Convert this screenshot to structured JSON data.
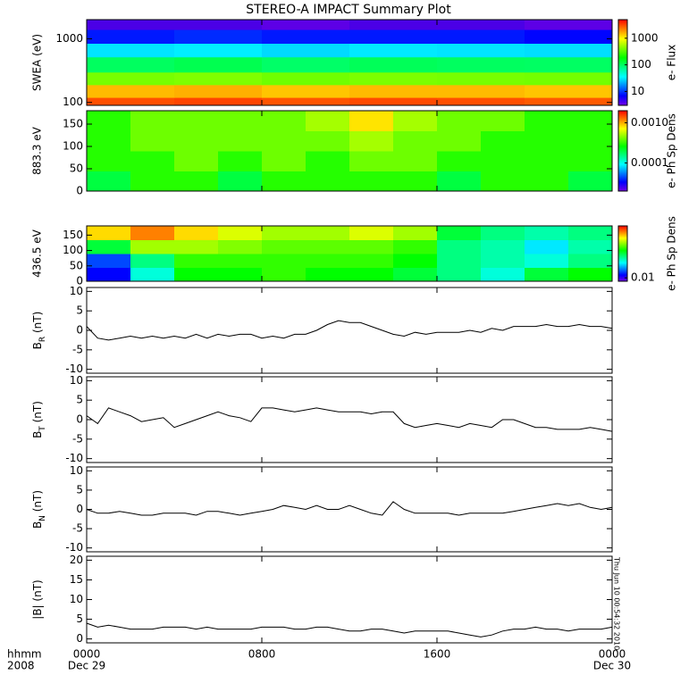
{
  "title": "STEREO-A IMPACT Summary Plot",
  "timestamp": "Thu Jun 10 00:54:32 2010",
  "x_axis": {
    "xlim": [
      0,
      24
    ],
    "xticks": [
      {
        "value": 0,
        "label": "0000"
      },
      {
        "value": 8,
        "label": "0800"
      },
      {
        "value": 16,
        "label": "1600"
      },
      {
        "value": 24,
        "label": "0000"
      }
    ],
    "date_labels": [
      "Dec 29",
      "Dec 30"
    ],
    "left_labels": [
      "hhmm",
      "2008"
    ]
  },
  "chart_data": [
    {
      "type": "spectrogram",
      "ylabel": "SWEA (eV)",
      "ylog": true,
      "ylim": [
        90,
        2000
      ],
      "yticks": [
        100,
        1000
      ],
      "x_edges": [
        0,
        4,
        8,
        12,
        16,
        20,
        24
      ],
      "y_edges": [
        90,
        120,
        190,
        300,
        520,
        850,
        1400,
        2000
      ],
      "values": [
        [
          3000,
          3200,
          2900,
          3100,
          3000,
          2800
        ],
        [
          1500,
          1600,
          1400,
          1500,
          1500,
          1400
        ],
        [
          400,
          420,
          380,
          410,
          400,
          390
        ],
        [
          100,
          110,
          95,
          105,
          100,
          98
        ],
        [
          30,
          32,
          28,
          31,
          30,
          29
        ],
        [
          8,
          9,
          8,
          8,
          8,
          7
        ],
        [
          4,
          4,
          3.5,
          4,
          4,
          3.5
        ]
      ],
      "clim": [
        3,
        5000
      ],
      "clog": true,
      "cticks": [
        10,
        100,
        1000
      ],
      "clabel": "e- Flux"
    },
    {
      "type": "spectrogram",
      "ylabel": "883.3 eV",
      "ylog": false,
      "ylim": [
        0,
        180
      ],
      "yticks": [
        0,
        50,
        100,
        150
      ],
      "x_edges": [
        0,
        2,
        4,
        6,
        8,
        10,
        12,
        14,
        16,
        18,
        20,
        22,
        24
      ],
      "y_edges": [
        0,
        45,
        90,
        135,
        180
      ],
      "values": [
        [
          0.0002,
          0.0003,
          0.0003,
          0.0002,
          0.0003,
          0.0003,
          0.0003,
          0.0003,
          0.0002,
          0.0003,
          0.0003,
          0.0002
        ],
        [
          0.0003,
          0.0003,
          0.0004,
          0.0003,
          0.0004,
          0.0003,
          0.0004,
          0.0004,
          0.0003,
          0.0003,
          0.0003,
          0.0003
        ],
        [
          0.0003,
          0.0004,
          0.0004,
          0.0004,
          0.0004,
          0.0004,
          0.0005,
          0.0004,
          0.0004,
          0.0003,
          0.0003,
          0.0003
        ],
        [
          0.0003,
          0.0004,
          0.0004,
          0.0004,
          0.0004,
          0.0005,
          0.0008,
          0.0005,
          0.0004,
          0.0004,
          0.0003,
          0.0003
        ]
      ],
      "clim": [
        2e-05,
        0.002
      ],
      "clog": true,
      "cticks": [
        0.0001,
        {
          "value": 0.001,
          "label": "0.0010"
        }
      ],
      "clabel": "e- Ph Sp Dens"
    },
    {
      "type": "spectrogram",
      "ylabel": "436.5 eV",
      "ylog": false,
      "ylim": [
        0,
        180
      ],
      "yticks": [
        0,
        50,
        100,
        150
      ],
      "x_edges": [
        0,
        2,
        4,
        6,
        8,
        10,
        12,
        14,
        16,
        18,
        20,
        22,
        24
      ],
      "y_edges": [
        0,
        45,
        90,
        135,
        180
      ],
      "values": [
        [
          0.012,
          0.03,
          0.06,
          0.06,
          0.07,
          0.06,
          0.06,
          0.05,
          0.04,
          0.03,
          0.05,
          0.06
        ],
        [
          0.015,
          0.04,
          0.07,
          0.07,
          0.07,
          0.07,
          0.07,
          0.06,
          0.04,
          0.035,
          0.03,
          0.04
        ],
        [
          0.05,
          0.1,
          0.1,
          0.09,
          0.08,
          0.08,
          0.08,
          0.07,
          0.04,
          0.035,
          0.025,
          0.035
        ],
        [
          0.15,
          0.2,
          0.15,
          0.12,
          0.1,
          0.1,
          0.12,
          0.1,
          0.05,
          0.04,
          0.035,
          0.04
        ]
      ],
      "clim": [
        0.008,
        0.3
      ],
      "clog": true,
      "cticks": [
        0.01
      ],
      "clabel": "e- Ph Sp Dens"
    },
    {
      "type": "line",
      "ylabel": {
        "base": "B",
        "sub": "R",
        "unit": " (nT)"
      },
      "ylim": [
        -11,
        11
      ],
      "yticks": [
        -10,
        -5,
        0,
        5,
        10
      ],
      "color": "#000000",
      "x": [
        0,
        0.5,
        1,
        1.5,
        2,
        2.5,
        3,
        3.5,
        4,
        4.5,
        5,
        5.5,
        6,
        6.5,
        7,
        7.5,
        8,
        8.5,
        9,
        9.5,
        10,
        10.5,
        11,
        11.5,
        12,
        12.5,
        13,
        13.5,
        14,
        14.5,
        15,
        15.5,
        16,
        16.5,
        17,
        17.5,
        18,
        18.5,
        19,
        19.5,
        20,
        20.5,
        21,
        21.5,
        22,
        22.5,
        23,
        23.5,
        24
      ],
      "values": [
        1,
        -2,
        -2.5,
        -2,
        -1.5,
        -2,
        -1.5,
        -2,
        -1.5,
        -2,
        -1,
        -2,
        -1,
        -1.5,
        -1,
        -1,
        -2,
        -1.5,
        -2,
        -1,
        -1,
        0,
        1.5,
        2.5,
        2,
        2,
        1,
        0,
        -1,
        -1.5,
        -0.5,
        -1,
        -0.5,
        -0.5,
        -0.5,
        0,
        -0.5,
        0.5,
        0,
        1,
        1,
        1,
        1.5,
        1,
        1,
        1.5,
        1,
        1,
        0.5
      ]
    },
    {
      "type": "line",
      "ylabel": {
        "base": "B",
        "sub": "T",
        "unit": " (nT)"
      },
      "ylim": [
        -11,
        11
      ],
      "yticks": [
        -10,
        -5,
        0,
        5,
        10
      ],
      "color": "#000000",
      "x": [
        0,
        0.5,
        1,
        1.5,
        2,
        2.5,
        3,
        3.5,
        4,
        4.5,
        5,
        5.5,
        6,
        6.5,
        7,
        7.5,
        8,
        8.5,
        9,
        9.5,
        10,
        10.5,
        11,
        11.5,
        12,
        12.5,
        13,
        13.5,
        14,
        14.5,
        15,
        15.5,
        16,
        16.5,
        17,
        17.5,
        18,
        18.5,
        19,
        19.5,
        20,
        20.5,
        21,
        21.5,
        22,
        22.5,
        23,
        23.5,
        24
      ],
      "values": [
        1,
        -1,
        3,
        2,
        1,
        -0.5,
        0,
        0.5,
        -2,
        -1,
        0,
        1,
        2,
        1,
        0.5,
        -0.5,
        3,
        3,
        2.5,
        2,
        2.5,
        3,
        2.5,
        2,
        2,
        2,
        1.5,
        2,
        2,
        -1,
        -2,
        -1.5,
        -1,
        -1.5,
        -2,
        -1,
        -1.5,
        -2,
        0,
        0,
        -1,
        -2,
        -2,
        -2.5,
        -2.5,
        -2.5,
        -2,
        -2.5,
        -3
      ]
    },
    {
      "type": "line",
      "ylabel": {
        "base": "B",
        "sub": "N",
        "unit": " (nT)"
      },
      "ylim": [
        -11,
        11
      ],
      "yticks": [
        -10,
        -5,
        0,
        5,
        10
      ],
      "color": "#000000",
      "x": [
        0,
        0.5,
        1,
        1.5,
        2,
        2.5,
        3,
        3.5,
        4,
        4.5,
        5,
        5.5,
        6,
        6.5,
        7,
        7.5,
        8,
        8.5,
        9,
        9.5,
        10,
        10.5,
        11,
        11.5,
        12,
        12.5,
        13,
        13.5,
        14,
        14.5,
        15,
        15.5,
        16,
        16.5,
        17,
        17.5,
        18,
        18.5,
        19,
        19.5,
        20,
        20.5,
        21,
        21.5,
        22,
        22.5,
        23,
        23.5,
        24
      ],
      "values": [
        0,
        -1,
        -1,
        -0.5,
        -1,
        -1.5,
        -1.5,
        -1,
        -1,
        -1,
        -1.5,
        -0.5,
        -0.5,
        -1,
        -1.5,
        -1,
        -0.5,
        0,
        1,
        0.5,
        0,
        1,
        0,
        0,
        1,
        0,
        -1,
        -1.5,
        2,
        0,
        -1,
        -1,
        -1,
        -1,
        -1.5,
        -1,
        -1,
        -1,
        -1,
        -0.5,
        0,
        0.5,
        1,
        1.5,
        1,
        1.5,
        0.5,
        0,
        0.5
      ]
    },
    {
      "type": "line",
      "ylabel": {
        "base": "|B|",
        "sub": "",
        "unit": " (nT)"
      },
      "ylim": [
        -1,
        21
      ],
      "yticks": [
        0,
        5,
        10,
        15,
        20
      ],
      "color": "#000000",
      "x": [
        0,
        0.5,
        1,
        1.5,
        2,
        2.5,
        3,
        3.5,
        4,
        4.5,
        5,
        5.5,
        6,
        6.5,
        7,
        7.5,
        8,
        8.5,
        9,
        9.5,
        10,
        10.5,
        11,
        11.5,
        12,
        12.5,
        13,
        13.5,
        14,
        14.5,
        15,
        15.5,
        16,
        16.5,
        17,
        17.5,
        18,
        18.5,
        19,
        19.5,
        20,
        20.5,
        21,
        21.5,
        22,
        22.5,
        23,
        23.5,
        24
      ],
      "values": [
        4,
        3,
        3.5,
        3,
        2.5,
        2.5,
        2.5,
        3,
        3,
        3,
        2.5,
        3,
        2.5,
        2.5,
        2.5,
        2.5,
        3,
        3,
        3,
        2.5,
        2.5,
        3,
        3,
        2.5,
        2,
        2,
        2.5,
        2.5,
        2,
        1.5,
        2,
        2,
        2,
        2,
        1.5,
        1,
        0.5,
        1,
        2,
        2.5,
        2.5,
        3,
        2.5,
        2.5,
        2,
        2.5,
        2.5,
        2.5,
        3
      ]
    }
  ]
}
